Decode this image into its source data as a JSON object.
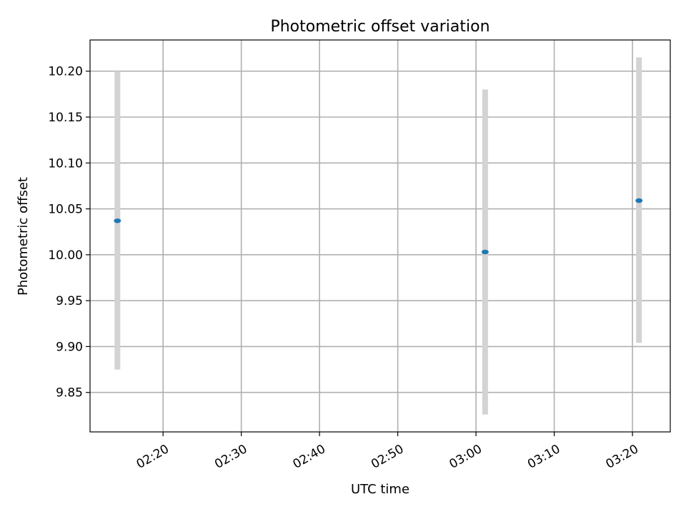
{
  "chart_data": {
    "type": "scatter",
    "title": "Photometric offset variation",
    "xlabel": "UTC time",
    "ylabel": "Photometric offset",
    "x_axis": "time",
    "xlim": [
      "02:10:40",
      "03:24:50"
    ],
    "ylim": [
      9.807,
      10.234
    ],
    "x_ticks": [
      "02:20",
      "02:30",
      "02:40",
      "02:50",
      "03:00",
      "03:10",
      "03:20"
    ],
    "y_ticks": [
      "9.85",
      "9.90",
      "9.95",
      "10.00",
      "10.05",
      "10.10",
      "10.15",
      "10.20"
    ],
    "grid": true,
    "series": [
      {
        "points": [
          {
            "x": "02:14:10",
            "y": 10.037,
            "err_low": 9.875,
            "err_high": 10.2
          },
          {
            "x": "03:01:10",
            "y": 10.003,
            "err_low": 9.826,
            "err_high": 10.18
          },
          {
            "x": "03:20:50",
            "y": 10.059,
            "err_low": 9.904,
            "err_high": 10.215
          }
        ]
      }
    ],
    "colors": {
      "marker": "#1f77b4",
      "errorbar": "#d3d3d3",
      "grid": "#b0b0b0"
    }
  }
}
